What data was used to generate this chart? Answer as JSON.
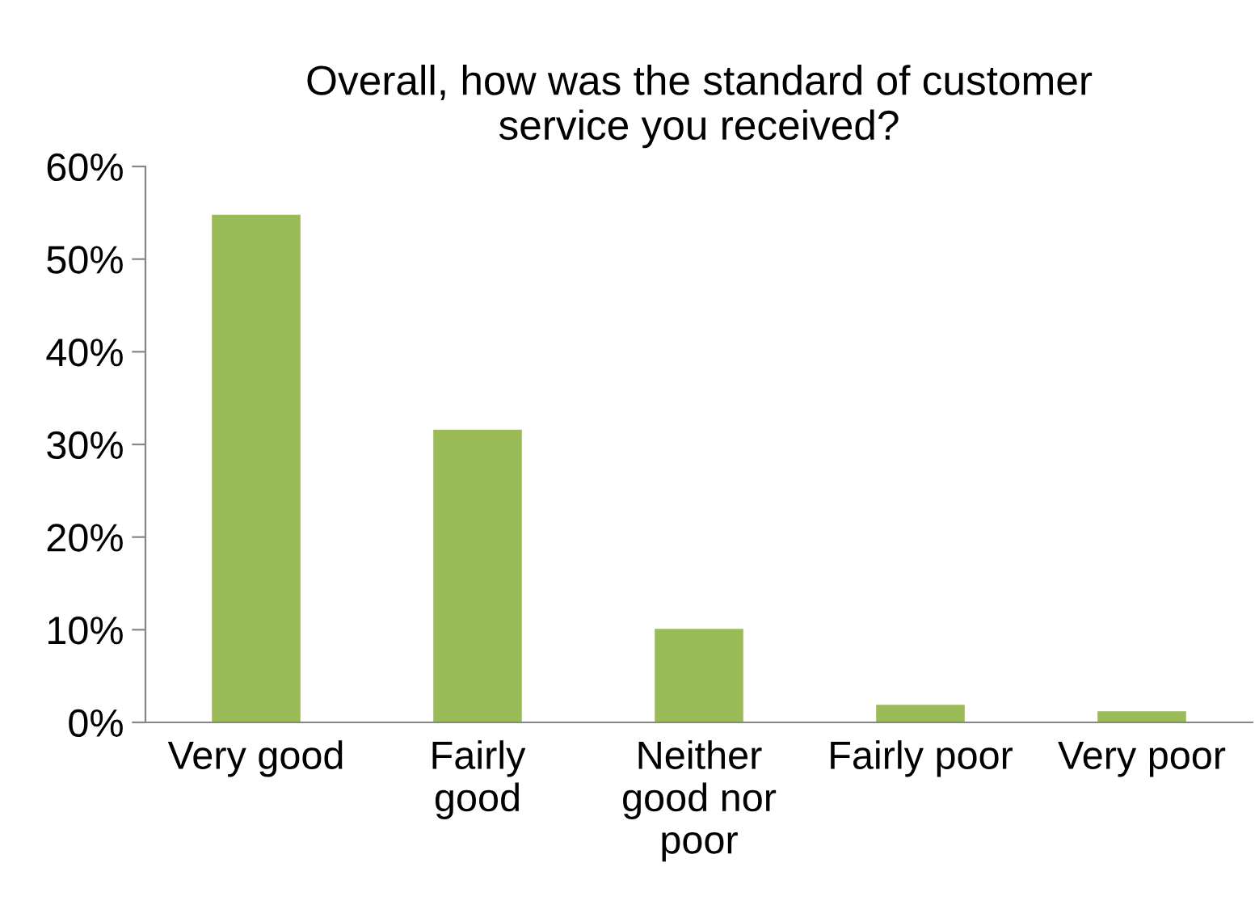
{
  "chart_data": {
    "type": "bar",
    "title": "Overall, how was the standard of customer\nservice you received?",
    "categories": [
      "Very good",
      "Fairly\ngood",
      "Neither\ngood nor\npoor",
      "Fairly poor",
      "Very poor"
    ],
    "values": [
      54.8,
      31.6,
      10.1,
      1.9,
      1.2
    ],
    "color": "#9bbb59",
    "ylim": [
      0,
      60
    ],
    "yticks": [
      {
        "value": 0,
        "label": "0%"
      },
      {
        "value": 10,
        "label": "10%"
      },
      {
        "value": 20,
        "label": "20%"
      },
      {
        "value": 30,
        "label": "30%"
      },
      {
        "value": 40,
        "label": "40%"
      },
      {
        "value": 50,
        "label": "50%"
      },
      {
        "value": 60,
        "label": "60%"
      }
    ],
    "grid": false
  }
}
